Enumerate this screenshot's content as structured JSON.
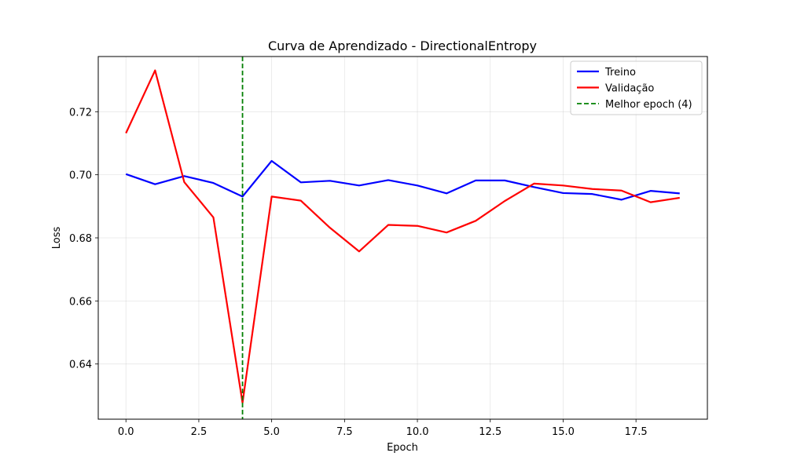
{
  "chart_data": {
    "type": "line",
    "title": "Curva de Aprendizado - DirectionalEntropy",
    "xlabel": "Epoch",
    "ylabel": "Loss",
    "xlim": [
      -0.95,
      19.95
    ],
    "ylim": [
      0.6225,
      0.7375
    ],
    "xticks": [
      0.0,
      2.5,
      5.0,
      7.5,
      10.0,
      12.5,
      15.0,
      17.5
    ],
    "xtick_labels": [
      "0.0",
      "2.5",
      "5.0",
      "7.5",
      "10.0",
      "12.5",
      "15.0",
      "17.5"
    ],
    "yticks": [
      0.64,
      0.66,
      0.68,
      0.7,
      0.72
    ],
    "ytick_labels": [
      "0.64",
      "0.66",
      "0.68",
      "0.70",
      "0.72"
    ],
    "grid": true,
    "legend_position": "top-right",
    "x": [
      0,
      1,
      2,
      3,
      4,
      5,
      6,
      7,
      8,
      9,
      10,
      11,
      12,
      13,
      14,
      15,
      16,
      17,
      18,
      19
    ],
    "series": [
      {
        "name": "Treino",
        "color": "#0000ff",
        "values": [
          0.7002,
          0.697,
          0.6996,
          0.6974,
          0.6931,
          0.7044,
          0.6976,
          0.6981,
          0.6966,
          0.6983,
          0.6966,
          0.6941,
          0.6982,
          0.6982,
          0.6961,
          0.6942,
          0.6939,
          0.6921,
          0.6949,
          0.6941
        ]
      },
      {
        "name": "Validação",
        "color": "#ff0000",
        "values": [
          0.7132,
          0.7331,
          0.6977,
          0.6865,
          0.6277,
          0.6931,
          0.6918,
          0.6832,
          0.6757,
          0.6841,
          0.6838,
          0.6817,
          0.6854,
          0.6917,
          0.6972,
          0.6966,
          0.6955,
          0.695,
          0.6913,
          0.6927
        ]
      }
    ],
    "vline": {
      "name": "Melhor epoch (4)",
      "x": 4,
      "color": "#008000"
    }
  }
}
